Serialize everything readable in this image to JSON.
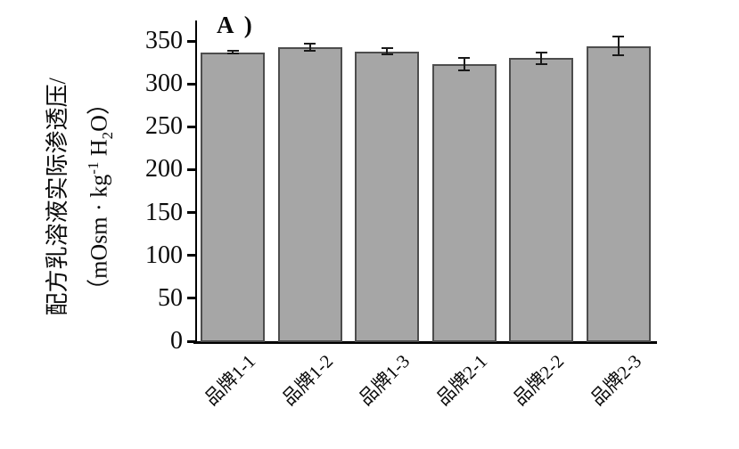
{
  "figure": {
    "panel_label": "A )"
  },
  "chart_data": {
    "type": "bar",
    "title": "A )",
    "categories": [
      "品牌1-1",
      "品牌1-2",
      "品牌1-3",
      "品牌2-1",
      "品牌2-2",
      "品牌2-3"
    ],
    "values": [
      337,
      343,
      338,
      323,
      330,
      344
    ],
    "errors": [
      1.5,
      4,
      4,
      7.5,
      6.5,
      11
    ],
    "ylabel_line1": "配方乳溶液实际渗透压/",
    "ylabel_unit": {
      "prefix": "（mOsm · kg",
      "sup": "-1",
      "mid": " H",
      "sub": "2",
      "suffix": "O）"
    },
    "ylabel_text": "配方乳溶液实际渗透压/（mOsm·kg-1 H2O）",
    "yticks": [
      0,
      50,
      100,
      150,
      200,
      250,
      300,
      350
    ],
    "ylim": [
      0,
      374
    ],
    "xlabel": "",
    "legend": null,
    "grid": false,
    "bar_color": "#a6a6a6",
    "bar_border_color": "#4d4d4d",
    "error_bar_color": "#1a1a1a",
    "axis_color": "#000000"
  }
}
